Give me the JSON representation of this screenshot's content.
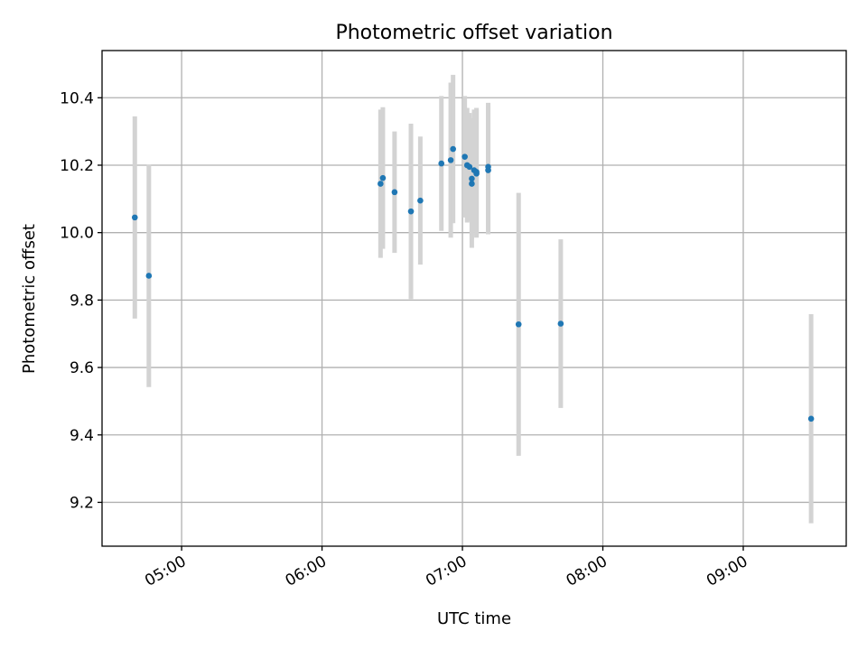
{
  "chart_data": {
    "type": "scatter",
    "title": "Photometric offset variation",
    "xlabel": "UTC time",
    "ylabel": "Photometric offset",
    "grid": true,
    "colors": {
      "point": "#1f77b4",
      "errorbar": "#d3d3d3"
    },
    "xlim": [
      "04:26",
      "09:44"
    ],
    "ylim": [
      9.07,
      10.54
    ],
    "x_ticks": [
      "05:00",
      "06:00",
      "07:00",
      "08:00",
      "09:00"
    ],
    "y_ticks": [
      "9.2",
      "9.4",
      "9.6",
      "9.8",
      "10.0",
      "10.2",
      "10.4"
    ],
    "points": [
      {
        "x": "04:40",
        "y": 10.045,
        "err": 0.3
      },
      {
        "x": "04:46",
        "y": 9.872,
        "err": 0.33
      },
      {
        "x": "06:25",
        "y": 10.145,
        "err": 0.22
      },
      {
        "x": "06:26",
        "y": 10.162,
        "err": 0.21
      },
      {
        "x": "06:31",
        "y": 10.12,
        "err": 0.18
      },
      {
        "x": "06:38",
        "y": 10.063,
        "err": 0.26
      },
      {
        "x": "06:42",
        "y": 10.095,
        "err": 0.19
      },
      {
        "x": "06:51",
        "y": 10.205,
        "err": 0.2
      },
      {
        "x": "06:55",
        "y": 10.215,
        "err": 0.23
      },
      {
        "x": "06:56",
        "y": 10.248,
        "err": 0.22
      },
      {
        "x": "07:01",
        "y": 10.225,
        "err": 0.18
      },
      {
        "x": "07:02",
        "y": 10.2,
        "err": 0.17
      },
      {
        "x": "07:03",
        "y": 10.195,
        "err": 0.16
      },
      {
        "x": "07:04",
        "y": 10.145,
        "err": 0.19
      },
      {
        "x": "07:04",
        "y": 10.16,
        "err": 0.18
      },
      {
        "x": "07:05",
        "y": 10.185,
        "err": 0.18
      },
      {
        "x": "07:06",
        "y": 10.175,
        "err": 0.19
      },
      {
        "x": "07:06",
        "y": 10.18,
        "err": 0.19
      },
      {
        "x": "07:11",
        "y": 10.185,
        "err": 0.19
      },
      {
        "x": "07:11",
        "y": 10.195,
        "err": 0.19
      },
      {
        "x": "07:24",
        "y": 9.728,
        "err": 0.39
      },
      {
        "x": "07:42",
        "y": 9.73,
        "err": 0.25
      },
      {
        "x": "09:29",
        "y": 9.448,
        "err": 0.31
      }
    ]
  }
}
